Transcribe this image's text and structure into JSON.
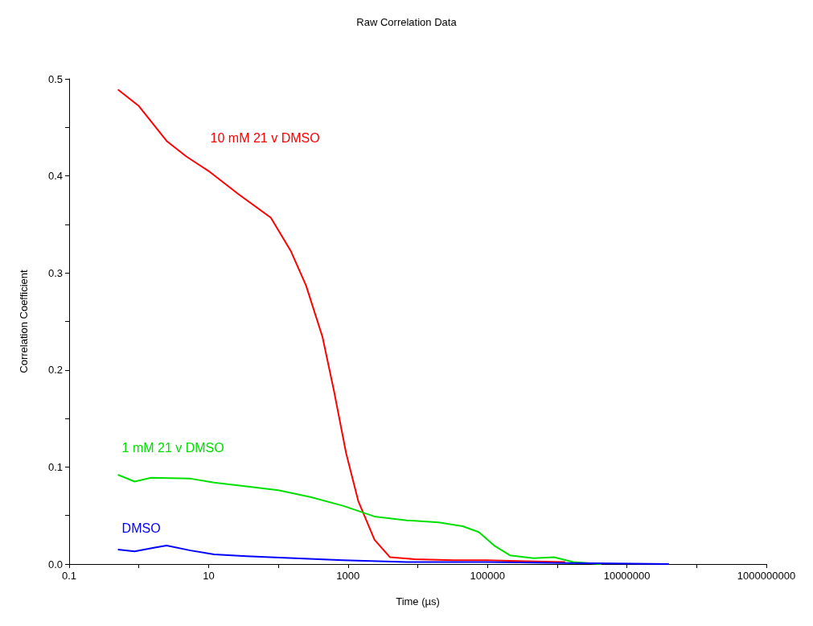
{
  "chart_data": {
    "type": "line",
    "title": "Raw Correlation Data",
    "xlabel": "Time (µs)",
    "ylabel": "Correlation Coefficient",
    "log": "x",
    "legend": false,
    "grid": false,
    "marker": "none",
    "line_style": "solid",
    "xlim": [
      0.1,
      1000000000
    ],
    "xticks": [
      0.1,
      {
        "value": 1,
        "label": null
      },
      10,
      {
        "value": 100,
        "label": null
      },
      1000,
      {
        "value": 10000,
        "label": null
      },
      100000,
      {
        "value": 1000000,
        "label": null
      },
      10000000,
      {
        "value": 100000000,
        "label": null
      },
      1000000000
    ],
    "ylim": [
      0,
      0.5
    ],
    "yticks": [
      {
        "value": 0,
        "label": "0.0"
      },
      {
        "value": 0.05,
        "label": null
      },
      0.1,
      {
        "value": 0.15,
        "label": null
      },
      0.2,
      {
        "value": 0.25,
        "label": null
      },
      0.3,
      {
        "value": 0.35,
        "label": null
      },
      0.4,
      {
        "value": 0.45,
        "label": null
      },
      0.5
    ],
    "series": [
      {
        "name": "10 mM 21 v DMSO",
        "color": "#ff0000",
        "x": [
          0.5,
          1,
          2.5,
          4.8,
          10,
          27,
          78,
          150,
          250,
          430,
          630,
          940,
          1400,
          2400,
          4000,
          9000,
          33000,
          96000,
          350000,
          1300000
        ],
        "values": [
          0.489,
          0.472,
          0.436,
          0.42,
          0.405,
          0.381,
          0.357,
          0.323,
          0.287,
          0.234,
          0.178,
          0.114,
          0.065,
          0.025,
          0.007,
          0.005,
          0.004,
          0.004,
          0.003,
          0.002
        ]
      },
      {
        "name": "1 mM 21 v DMSO",
        "color": "#00e000",
        "x": [
          0.5,
          0.87,
          1.5,
          5.5,
          12,
          35,
          100,
          290,
          850,
          2400,
          7000,
          20000,
          44000,
          75000,
          125000,
          210000,
          460000,
          900000,
          1700000,
          4300000
        ],
        "values": [
          0.092,
          0.085,
          0.089,
          0.088,
          0.084,
          0.08,
          0.076,
          0.069,
          0.06,
          0.049,
          0.045,
          0.043,
          0.039,
          0.033,
          0.019,
          0.009,
          0.006,
          0.007,
          0.002,
          0
        ]
      },
      {
        "name": "DMSO",
        "color": "#0000ff",
        "x": [
          0.5,
          0.87,
          1.7,
          2.5,
          5.5,
          12,
          35,
          170,
          850,
          7000,
          96000,
          1300000,
          40000000
        ],
        "values": [
          0.015,
          0.013,
          0.017,
          0.019,
          0.014,
          0.01,
          0.008,
          0.006,
          0.004,
          0.002,
          0.002,
          0.001,
          0
        ]
      }
    ]
  }
}
